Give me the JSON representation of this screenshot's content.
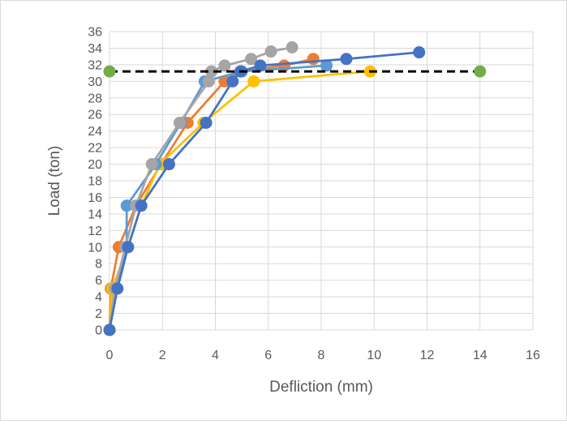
{
  "chart_data": {
    "type": "line",
    "title": "",
    "xlabel": "Defliction (mm)",
    "ylabel": "Load (ton)",
    "xlim": [
      0,
      16
    ],
    "ylim": [
      0,
      36
    ],
    "x_ticks": [
      0,
      2,
      4,
      6,
      8,
      10,
      12,
      14,
      16
    ],
    "y_ticks": [
      0,
      2,
      4,
      6,
      8,
      10,
      12,
      14,
      16,
      18,
      20,
      22,
      24,
      26,
      28,
      30,
      32,
      34,
      36
    ],
    "grid": true,
    "legend": "none",
    "series": [
      {
        "color": "#ED7D31",
        "points": [
          [
            0,
            0
          ],
          [
            0.05,
            5
          ],
          [
            0.35,
            10
          ],
          [
            1.0,
            15
          ],
          [
            1.95,
            20
          ],
          [
            2.95,
            25
          ],
          [
            4.35,
            30
          ],
          [
            4.95,
            31.2
          ],
          [
            6.6,
            31.9
          ],
          [
            7.7,
            32.7
          ]
        ]
      },
      {
        "color": "#FFC000",
        "points": [
          [
            0,
            0
          ],
          [
            0.1,
            5
          ],
          [
            0.7,
            10
          ],
          [
            1.2,
            15
          ],
          [
            1.9,
            20
          ],
          [
            3.55,
            25
          ],
          [
            5.45,
            30
          ],
          [
            9.85,
            31.2
          ]
        ]
      },
      {
        "color": "#5B9BD5",
        "points": [
          [
            0,
            0
          ],
          [
            0.25,
            5
          ],
          [
            0.65,
            10
          ],
          [
            0.65,
            15
          ],
          [
            1.75,
            20
          ],
          [
            2.7,
            25
          ],
          [
            3.6,
            30
          ],
          [
            5.0,
            31.2
          ],
          [
            8.2,
            31.9
          ]
        ]
      },
      {
        "color": "#A5A5A5",
        "points": [
          [
            0,
            0
          ],
          [
            0.2,
            5
          ],
          [
            0.6,
            10
          ],
          [
            1.0,
            15
          ],
          [
            1.6,
            20
          ],
          [
            2.65,
            25
          ],
          [
            3.75,
            30
          ],
          [
            3.85,
            31.2
          ],
          [
            4.35,
            31.9
          ],
          [
            5.35,
            32.7
          ],
          [
            6.1,
            33.6
          ],
          [
            6.9,
            34.1
          ]
        ]
      },
      {
        "color": "#4472C4",
        "points": [
          [
            0,
            0
          ],
          [
            0.3,
            5
          ],
          [
            0.7,
            10
          ],
          [
            1.2,
            15
          ],
          [
            2.25,
            20
          ],
          [
            3.65,
            25
          ],
          [
            4.65,
            30
          ],
          [
            4.95,
            31.2
          ],
          [
            5.7,
            31.9
          ],
          [
            8.95,
            32.7
          ],
          [
            11.7,
            33.5
          ]
        ]
      },
      {
        "color": "#70AD47",
        "style": "dashed",
        "line_color": "#000000",
        "points": [
          [
            0,
            31.2
          ],
          [
            14,
            31.2
          ]
        ]
      }
    ]
  }
}
